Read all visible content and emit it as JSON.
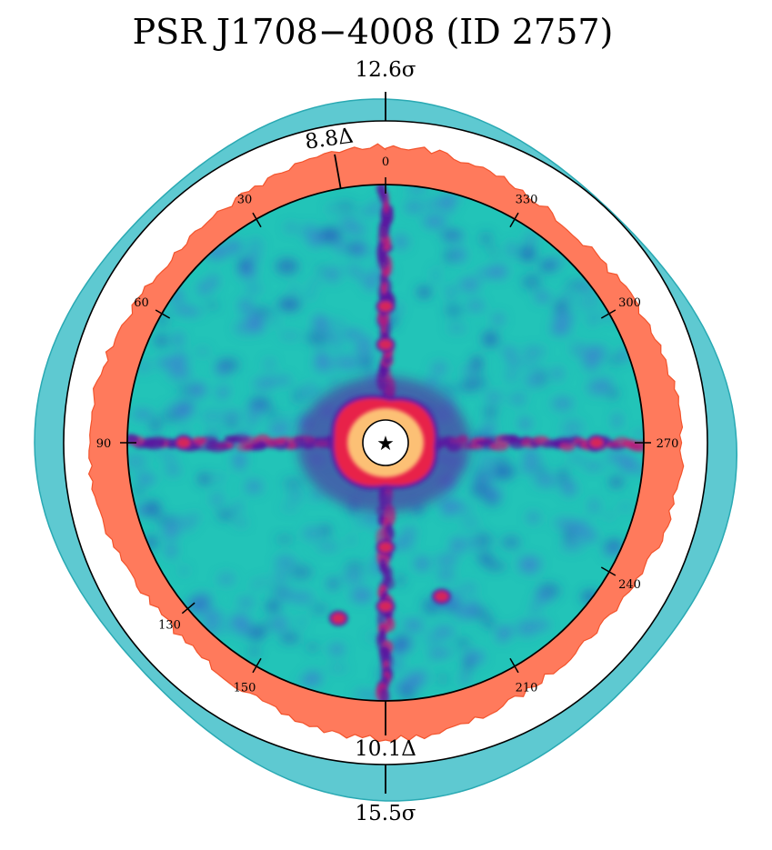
{
  "chart_data": {
    "type": "heatmap",
    "title": "PSR J1708−4008 (ID 2757)",
    "projection": "polar sky map with radial significance profiles",
    "angle_ticks": [
      {
        "angle": 0,
        "label": "0"
      },
      {
        "angle": 30,
        "label": "30"
      },
      {
        "angle": 60,
        "label": "60"
      },
      {
        "angle": 90,
        "label": "90"
      },
      {
        "angle": 130,
        "label": "130"
      },
      {
        "angle": 150,
        "label": "150"
      },
      {
        "angle": 210,
        "label": "210"
      },
      {
        "angle": 240,
        "label": "240"
      },
      {
        "angle": 270,
        "label": "270"
      },
      {
        "angle": 300,
        "label": "300"
      },
      {
        "angle": 330,
        "label": "330"
      }
    ],
    "annotations": [
      {
        "id": "outer_top",
        "text": "12.6σ",
        "angle": 0,
        "ring": "outer"
      },
      {
        "id": "outer_bottom",
        "text": "15.5σ",
        "angle": 180,
        "ring": "outer"
      },
      {
        "id": "inner_top",
        "text": "8.8Δ",
        "angle": 10,
        "ring": "inner"
      },
      {
        "id": "inner_bottom",
        "text": "10.1Δ",
        "angle": 180,
        "ring": "inner"
      }
    ],
    "center_marker": "★",
    "streaks": [
      {
        "angle": 90,
        "label": "left horizontal arm"
      },
      {
        "angle": 270,
        "label": "right horizontal arm"
      },
      {
        "angle": 0,
        "label": "upper vertical arm"
      },
      {
        "angle": 180,
        "label": "lower vertical arm"
      }
    ],
    "colors": {
      "outer_profile": "#5ec9d1",
      "outer_profile_edge": "#2aa9b3",
      "inner_profile": "#ff7a5c",
      "inner_profile_edge": "#f2542d",
      "map_background": "#22c4b8",
      "map_low": "#3c7fd0",
      "map_mid": "#5a1aa0",
      "map_high": "#e8204a",
      "map_peak": "#ffd27a"
    }
  }
}
